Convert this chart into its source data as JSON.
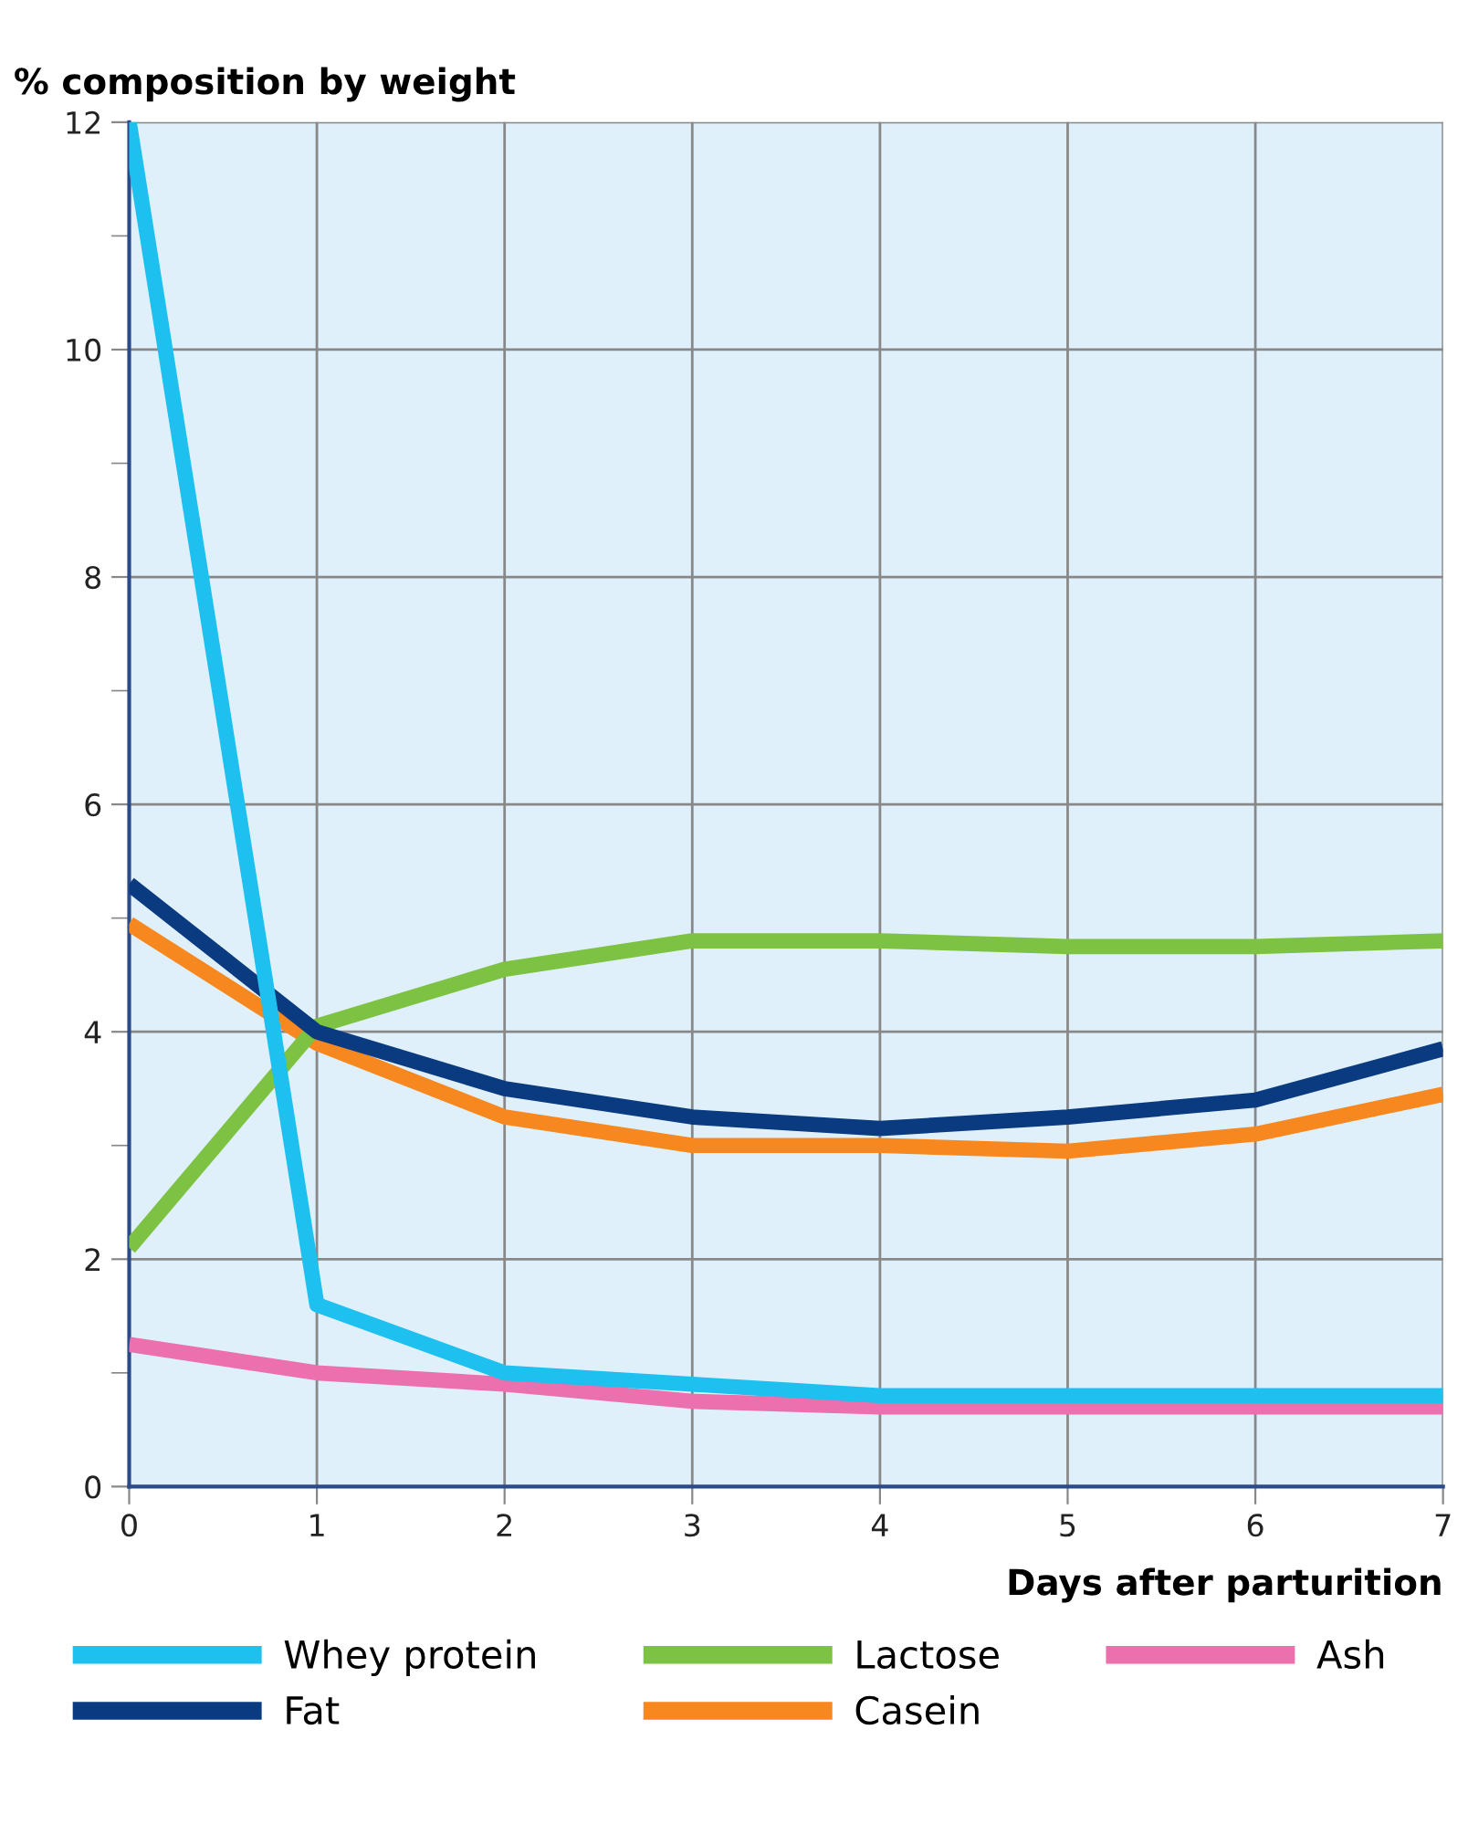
{
  "chart_data": {
    "type": "line",
    "ylabel": "% composition by weight",
    "xlabel": "Days after parturition",
    "x": [
      0,
      1,
      2,
      3,
      4,
      5,
      6,
      7
    ],
    "series": [
      {
        "name": "Whey protein",
        "color": "#1ec0f0",
        "values": [
          12,
          1.6,
          1.0,
          0.9,
          0.8,
          0.8,
          0.8,
          0.8
        ]
      },
      {
        "name": "Fat",
        "color": "#0a3a80",
        "values": [
          5.3,
          4.0,
          3.5,
          3.25,
          3.15,
          3.25,
          3.4,
          3.85
        ]
      },
      {
        "name": "Lactose",
        "color": "#7dc242",
        "values": [
          2.1,
          4.05,
          4.55,
          4.8,
          4.8,
          4.75,
          4.75,
          4.8
        ]
      },
      {
        "name": "Casein",
        "color": "#f7881f",
        "values": [
          4.95,
          3.9,
          3.25,
          3.0,
          3.0,
          2.95,
          3.1,
          3.45
        ]
      },
      {
        "name": "Ash",
        "color": "#ec6fae",
        "values": [
          1.25,
          1.0,
          0.9,
          0.75,
          0.7,
          0.7,
          0.7,
          0.7
        ]
      }
    ],
    "xlim": [
      0,
      7
    ],
    "ylim": [
      0,
      12
    ],
    "xticks": [
      0,
      1,
      2,
      3,
      4,
      5,
      6,
      7
    ],
    "yticks": [
      0,
      {
        "value": 1,
        "label": null
      },
      2,
      {
        "value": 3,
        "label": null
      },
      4,
      {
        "value": 5,
        "label": null
      },
      6,
      {
        "value": 7,
        "label": null
      },
      8,
      {
        "value": 9,
        "label": null
      },
      10,
      {
        "value": 11,
        "label": null
      },
      12
    ],
    "grid": true,
    "legend": "bottom",
    "marker": "none",
    "line_style": "solid"
  }
}
